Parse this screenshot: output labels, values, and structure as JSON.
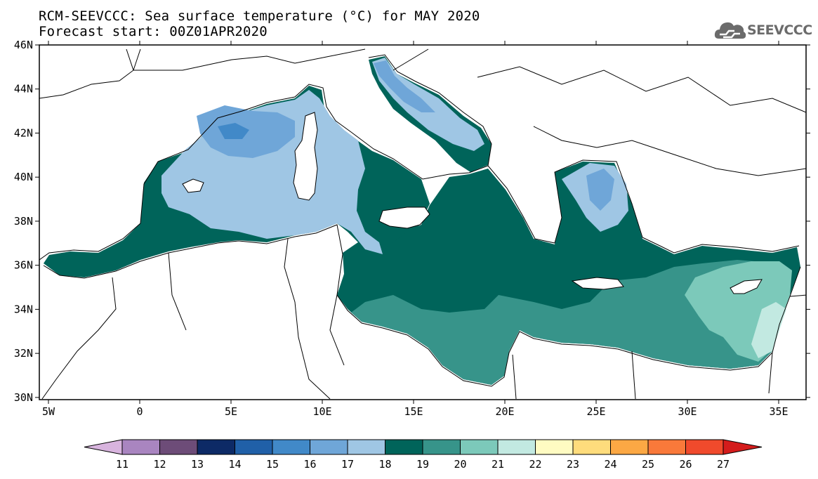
{
  "header": {
    "title_line1": "RCM-SEEVCCC: Sea surface temperature (°C) for MAY 2020",
    "title_line2": "Forecast start: 00Z01APR2020",
    "logo_text": "SEEVCCC"
  },
  "map": {
    "lon_range": [
      -5.5,
      36.5
    ],
    "lat_range": [
      29.9,
      46.0
    ],
    "lat_ticks": [
      {
        "value": 46,
        "label": "46N"
      },
      {
        "value": 44,
        "label": "44N"
      },
      {
        "value": 42,
        "label": "42N"
      },
      {
        "value": 40,
        "label": "40N"
      },
      {
        "value": 38,
        "label": "38N"
      },
      {
        "value": 36,
        "label": "36N"
      },
      {
        "value": 34,
        "label": "34N"
      },
      {
        "value": 32,
        "label": "32N"
      },
      {
        "value": 30,
        "label": "30N"
      }
    ],
    "lon_ticks": [
      {
        "value": -5,
        "label": "5W"
      },
      {
        "value": 0,
        "label": "0"
      },
      {
        "value": 5,
        "label": "5E"
      },
      {
        "value": 10,
        "label": "10E"
      },
      {
        "value": 15,
        "label": "15E"
      },
      {
        "value": 20,
        "label": "20E"
      },
      {
        "value": 25,
        "label": "25E"
      },
      {
        "value": 30,
        "label": "30E"
      },
      {
        "value": 35,
        "label": "35E"
      }
    ]
  },
  "colorbar": {
    "levels": [
      "11",
      "12",
      "13",
      "14",
      "15",
      "16",
      "17",
      "18",
      "19",
      "20",
      "21",
      "22",
      "23",
      "24",
      "25",
      "26",
      "27"
    ],
    "colors": [
      "#d8b4de",
      "#a985c0",
      "#6d4c78",
      "#0d2a66",
      "#2060a8",
      "#4189c8",
      "#6fa6d8",
      "#9fc6e4",
      "#00645a",
      "#37948a",
      "#7cc9ba",
      "#c2e9e1",
      "#fffbc2",
      "#fedc7c",
      "#fca844",
      "#f9793a",
      "#f04a2c",
      "#d41c1c"
    ]
  }
}
